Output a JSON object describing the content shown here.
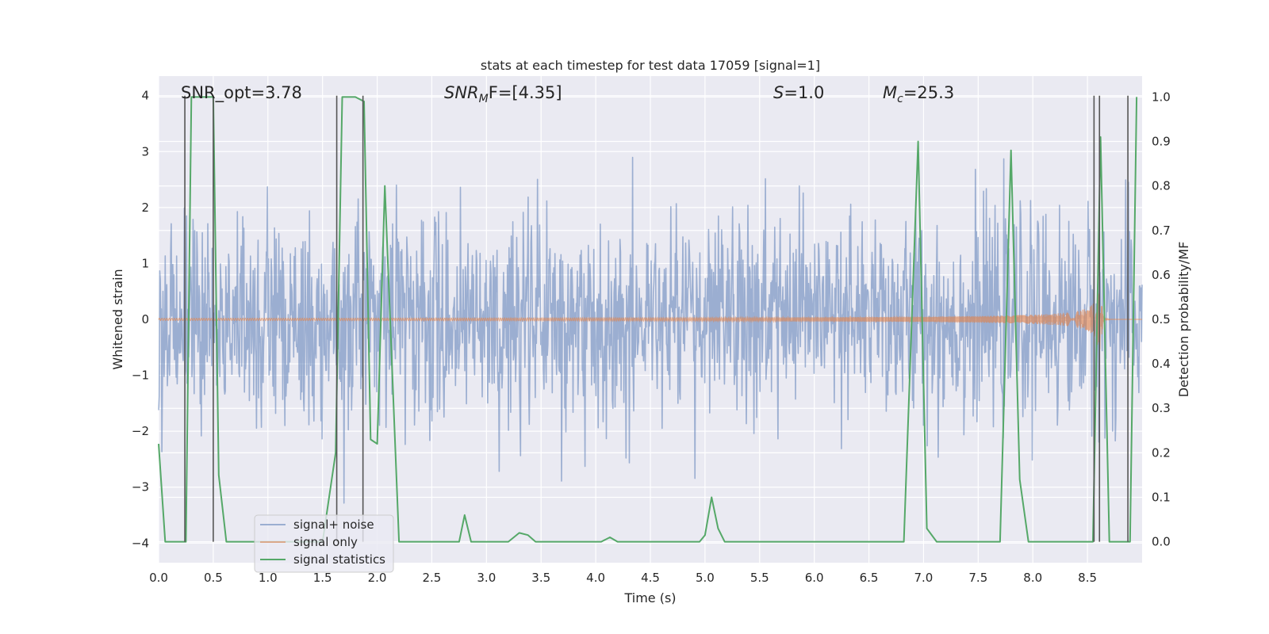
{
  "chart_data": {
    "type": "line",
    "title": "stats at each timestep for test data 17059 [signal=1]",
    "xlabel": "Time (s)",
    "ylabel_left": "Whitened strain",
    "ylabel_right": "Detection probability/MF",
    "xlim": [
      0.0,
      9.0
    ],
    "ylim_left": [
      -4.35,
      4.35
    ],
    "ylim_right": [
      -0.047,
      1.047
    ],
    "xticks": [
      "0.0",
      "0.5",
      "1.0",
      "1.5",
      "2.0",
      "2.5",
      "3.0",
      "3.5",
      "4.0",
      "4.5",
      "5.0",
      "5.5",
      "6.0",
      "6.5",
      "7.0",
      "7.5",
      "8.0",
      "8.5"
    ],
    "yticks_left": [
      "4",
      "3",
      "2",
      "1",
      "0",
      "−1",
      "−2",
      "−3",
      "−4"
    ],
    "yticks_right": [
      "1.0",
      "0.9",
      "0.8",
      "0.7",
      "0.6",
      "0.5",
      "0.4",
      "0.3",
      "0.2",
      "0.1",
      "0.0"
    ],
    "grid": true,
    "annotations": {
      "snr_opt": "SNR_opt=3.78",
      "snr_mf_main": "SNR",
      "snr_mf_sub": "M",
      "snr_mf_rest": "F=[4.35]",
      "s_main": "S",
      "s_rest": "=1.0",
      "mc_main": "M",
      "mc_sub": "c",
      "mc_rest": "=25.3"
    },
    "series": [
      {
        "name": "signal+ noise",
        "color": "#4c72b0",
        "kind": "noise",
        "sigma": 0.9,
        "range": [
          -4.0,
          4.0
        ]
      },
      {
        "name": "signal only",
        "color": "#dd8452",
        "kind": "chirp",
        "t_merge": 8.62,
        "peak": 0.55
      },
      {
        "name": "signal statistics",
        "color": "#55a868",
        "axis": "right",
        "x": [
          0.0,
          0.06,
          0.25,
          0.3,
          0.5,
          0.55,
          0.62,
          1.5,
          1.62,
          1.68,
          1.8,
          1.88,
          1.94,
          2.0,
          2.07,
          2.2,
          2.75,
          2.8,
          2.86,
          3.2,
          3.3,
          3.38,
          3.45,
          4.05,
          4.13,
          4.2,
          4.95,
          5.0,
          5.06,
          5.12,
          5.18,
          5.5,
          6.82,
          6.95,
          7.03,
          7.12,
          7.7,
          7.8,
          7.88,
          7.96,
          8.55,
          8.62,
          8.7,
          8.83,
          8.89,
          8.95
        ],
        "y": [
          0.22,
          0.0,
          0.0,
          1.0,
          1.0,
          0.15,
          0.0,
          0.0,
          0.2,
          1.0,
          1.0,
          0.99,
          0.23,
          0.22,
          0.8,
          0.0,
          0.0,
          0.06,
          0.0,
          0.0,
          0.02,
          0.015,
          0.0,
          0.0,
          0.01,
          0.0,
          0.0,
          0.015,
          0.1,
          0.03,
          0.0,
          0.0,
          0.0,
          0.9,
          0.03,
          0.0,
          0.0,
          0.88,
          0.14,
          0.0,
          0.0,
          0.91,
          0.0,
          0.0,
          0.0,
          1.0
        ]
      }
    ],
    "vlines": [
      0.24,
      0.5,
      1.63,
      1.87,
      8.56,
      8.61,
      8.87
    ]
  }
}
